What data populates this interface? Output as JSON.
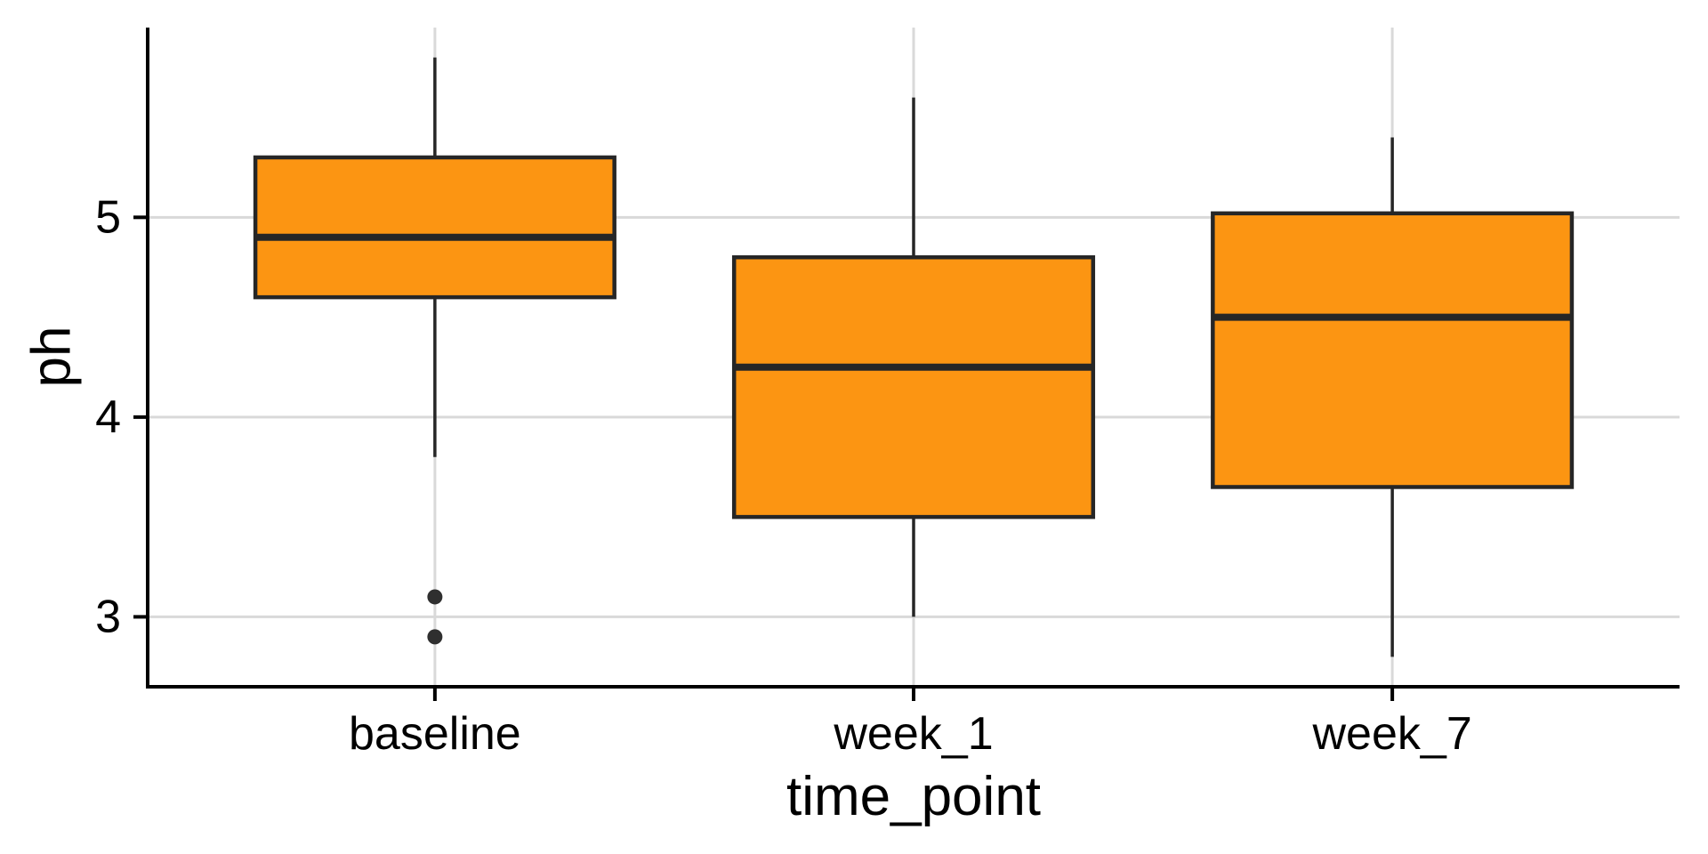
{
  "chart_data": {
    "type": "boxplot",
    "title": "",
    "xlabel": "time_point",
    "ylabel": "ph",
    "categories": [
      "baseline",
      "week_1",
      "week_7"
    ],
    "y_ticks": [
      3,
      4,
      5
    ],
    "ylim": [
      2.65,
      5.95
    ],
    "legend": "none",
    "grid": "major horizontal and vertical light-gray gridlines on white background",
    "series": [
      {
        "category": "baseline",
        "whisker_low": 3.8,
        "q1": 4.6,
        "median": 4.9,
        "q3": 5.3,
        "whisker_high": 5.8,
        "outliers": [
          3.1,
          2.9
        ]
      },
      {
        "category": "week_1",
        "whisker_low": 3.0,
        "q1": 3.5,
        "median": 4.25,
        "q3": 4.8,
        "whisker_high": 5.6,
        "outliers": []
      },
      {
        "category": "week_7",
        "whisker_low": 2.8,
        "q1": 3.65,
        "median": 4.5,
        "q3": 5.02,
        "whisker_high": 5.4,
        "outliers": []
      }
    ],
    "colors": {
      "box_fill": "#FC9512",
      "box_border": "#262626",
      "median": "#262626",
      "whisker": "#262626",
      "outlier": "#2F2F2F",
      "grid": "#D9D9D9",
      "axis": "#000000",
      "text": "#000000",
      "background": "#FFFFFF"
    }
  }
}
